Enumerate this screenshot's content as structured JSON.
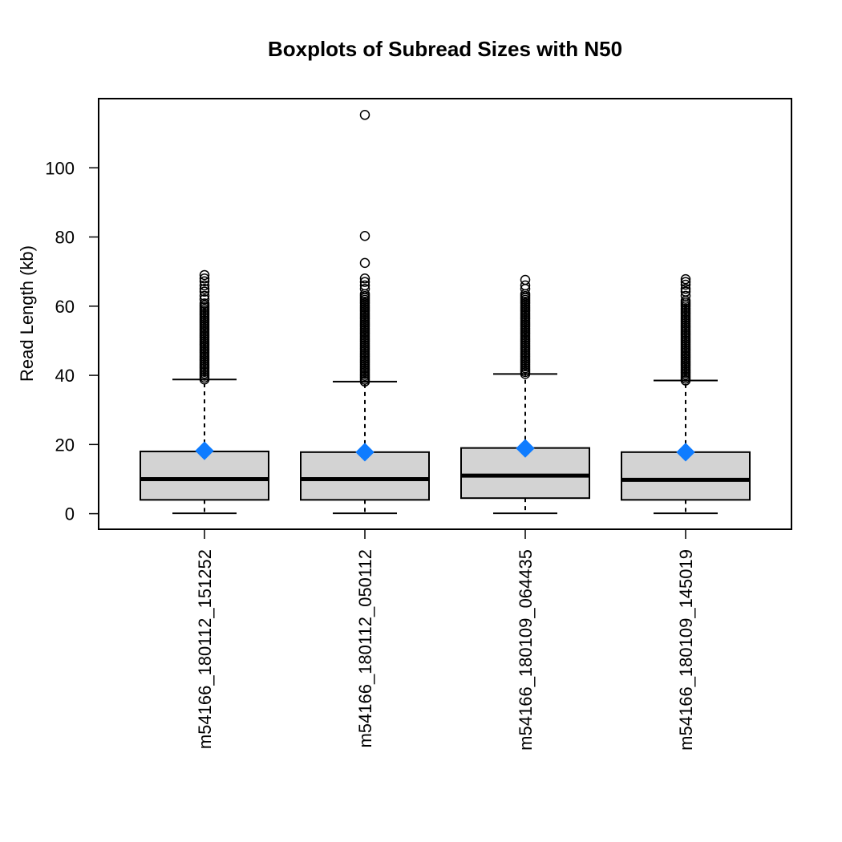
{
  "chart_data": {
    "type": "boxplot",
    "title": "Boxplots of Subread Sizes with N50",
    "ylabel": "Read Length (kb)",
    "xlabel": "",
    "ylim": [
      -4.5,
      120
    ],
    "yticks": [
      0,
      20,
      40,
      60,
      80,
      100
    ],
    "ytick_labels": [
      "0",
      "20",
      "40",
      "60",
      "80",
      "100"
    ],
    "grid": false,
    "categories": [
      "m54166_180112_151252",
      "m54166_180112_050112",
      "m54166_180109_064435",
      "m54166_180109_145019"
    ],
    "boxes": [
      {
        "label": "m54166_180112_151252",
        "whisker_low": 0.1,
        "q1": 4.0,
        "median": 10.0,
        "q3": 18.0,
        "whisker_high": 38.8,
        "n50": 18.2,
        "outliers_dense_range": [
          38.8,
          61.0
        ],
        "outliers": [
          62.0,
          63.0,
          64.2,
          65.0,
          66.0,
          67.2,
          68.0,
          69.0
        ]
      },
      {
        "label": "m54166_180112_050112",
        "whisker_low": 0.1,
        "q1": 4.0,
        "median": 10.0,
        "q3": 17.8,
        "whisker_high": 38.2,
        "n50": 17.8,
        "outliers_dense_range": [
          38.2,
          64.0
        ],
        "outliers": [
          65.0,
          66.0,
          67.0,
          68.0,
          72.5,
          80.3,
          115.3
        ]
      },
      {
        "label": "m54166_180109_064435",
        "whisker_low": 0.1,
        "q1": 4.5,
        "median": 11.0,
        "q3": 19.0,
        "whisker_high": 40.4,
        "n50": 18.9,
        "outliers_dense_range": [
          40.4,
          64.0
        ],
        "outliers": [
          65.0,
          66.0,
          67.6
        ]
      },
      {
        "label": "m54166_180109_145019",
        "whisker_low": 0.1,
        "q1": 4.0,
        "median": 9.8,
        "q3": 17.8,
        "whisker_high": 38.5,
        "n50": 17.8,
        "outliers_dense_range": [
          38.5,
          62.0
        ],
        "outliers": [
          63.0,
          64.2,
          65.0,
          66.2,
          67.0,
          67.8
        ]
      }
    ],
    "colors": {
      "box_fill": "#d3d3d3",
      "stroke": "#000000",
      "n50_marker": "#0f7cff",
      "background": "#ffffff"
    }
  }
}
